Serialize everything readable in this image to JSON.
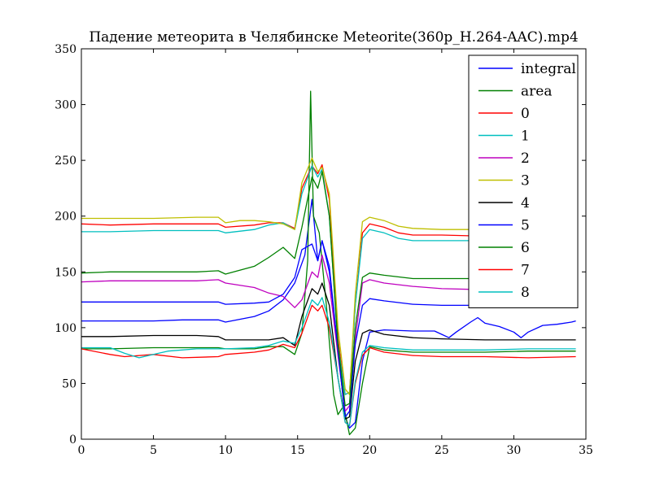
{
  "chart_data": {
    "type": "line",
    "title": "Падение метеорита в Челябинске Meteorite(360p_H.264-AAC).mp4",
    "xlabel": "",
    "ylabel": "",
    "xlim": [
      0,
      35
    ],
    "ylim": [
      0,
      350
    ],
    "xticks": [
      0,
      5,
      10,
      15,
      20,
      25,
      30,
      35
    ],
    "yticks": [
      0,
      50,
      100,
      150,
      200,
      250,
      300,
      350
    ],
    "grid": false,
    "legend_position": "top-right",
    "series": [
      {
        "name": "integral",
        "color": "#0000ff",
        "points": [
          [
            0,
            106
          ],
          [
            2,
            106
          ],
          [
            5,
            106
          ],
          [
            7,
            107
          ],
          [
            9.5,
            107
          ],
          [
            10,
            105
          ],
          [
            12,
            110
          ],
          [
            13,
            115
          ],
          [
            14,
            125
          ],
          [
            14.8,
            140
          ],
          [
            15.5,
            165
          ],
          [
            16,
            215
          ],
          [
            16.4,
            160
          ],
          [
            16.7,
            178
          ],
          [
            17.2,
            150
          ],
          [
            17.8,
            80
          ],
          [
            18.3,
            20
          ],
          [
            18.6,
            10
          ],
          [
            19,
            15
          ],
          [
            19.5,
            70
          ],
          [
            20,
            96
          ],
          [
            21,
            98
          ],
          [
            23,
            97
          ],
          [
            24.5,
            97
          ],
          [
            25,
            94
          ],
          [
            25.5,
            91
          ],
          [
            26,
            96
          ],
          [
            27,
            105
          ],
          [
            27.5,
            109
          ],
          [
            28,
            104
          ],
          [
            29,
            101
          ],
          [
            30,
            96
          ],
          [
            30.5,
            91
          ],
          [
            31,
            96
          ],
          [
            32,
            102
          ],
          [
            33,
            103
          ],
          [
            34,
            105
          ],
          [
            34.3,
            106
          ]
        ]
      },
      {
        "name": "area",
        "color": "#008000",
        "points": [
          [
            0,
            81
          ],
          [
            2,
            81
          ],
          [
            5,
            82
          ],
          [
            8,
            82
          ],
          [
            9.5,
            82
          ],
          [
            10,
            81
          ],
          [
            12,
            81
          ],
          [
            13,
            83
          ],
          [
            14,
            83
          ],
          [
            14.8,
            76
          ],
          [
            15.3,
            95
          ],
          [
            15.7,
            160
          ],
          [
            15.9,
            312
          ],
          [
            16.1,
            200
          ],
          [
            16.5,
            185
          ],
          [
            17,
            120
          ],
          [
            17.5,
            40
          ],
          [
            17.8,
            22
          ],
          [
            18.2,
            30
          ],
          [
            18.6,
            4
          ],
          [
            19,
            10
          ],
          [
            19.5,
            50
          ],
          [
            20,
            83
          ],
          [
            21,
            80
          ],
          [
            23,
            78
          ],
          [
            25,
            78
          ],
          [
            28,
            78
          ],
          [
            31,
            79
          ],
          [
            34.3,
            79
          ]
        ]
      },
      {
        "name": "0",
        "color": "#ff0000",
        "points": [
          [
            0,
            193
          ],
          [
            2,
            192
          ],
          [
            5,
            193
          ],
          [
            8,
            193
          ],
          [
            9.5,
            193
          ],
          [
            10,
            190
          ],
          [
            12,
            192
          ],
          [
            13,
            194
          ],
          [
            14,
            194
          ],
          [
            14.8,
            189
          ],
          [
            15.3,
            225
          ],
          [
            16,
            245
          ],
          [
            16.4,
            238
          ],
          [
            16.7,
            246
          ],
          [
            17.2,
            215
          ],
          [
            17.8,
            90
          ],
          [
            18.3,
            40
          ],
          [
            18.6,
            42
          ],
          [
            19,
            120
          ],
          [
            19.5,
            185
          ],
          [
            20,
            193
          ],
          [
            21,
            190
          ],
          [
            22,
            185
          ],
          [
            23,
            183
          ],
          [
            25,
            183
          ],
          [
            28,
            182
          ],
          [
            31,
            183
          ],
          [
            34.3,
            183
          ]
        ]
      },
      {
        "name": "1",
        "color": "#00bfbf",
        "points": [
          [
            0,
            186
          ],
          [
            2,
            186
          ],
          [
            5,
            187
          ],
          [
            8,
            187
          ],
          [
            9.5,
            187
          ],
          [
            10,
            185
          ],
          [
            12,
            188
          ],
          [
            13,
            192
          ],
          [
            14,
            194
          ],
          [
            14.8,
            188
          ],
          [
            15.3,
            220
          ],
          [
            16,
            245
          ],
          [
            16.4,
            235
          ],
          [
            16.7,
            242
          ],
          [
            17.2,
            200
          ],
          [
            17.8,
            85
          ],
          [
            18.3,
            40
          ],
          [
            18.6,
            42
          ],
          [
            19,
            120
          ],
          [
            19.5,
            180
          ],
          [
            20,
            188
          ],
          [
            21,
            185
          ],
          [
            22,
            180
          ],
          [
            23,
            178
          ],
          [
            25,
            178
          ],
          [
            28,
            178
          ],
          [
            31,
            178
          ],
          [
            34.3,
            177
          ]
        ]
      },
      {
        "name": "2",
        "color": "#bf00bf",
        "points": [
          [
            0,
            141
          ],
          [
            2,
            142
          ],
          [
            5,
            142
          ],
          [
            8,
            142
          ],
          [
            9.5,
            143
          ],
          [
            10,
            140
          ],
          [
            12,
            136
          ],
          [
            13,
            131
          ],
          [
            14,
            128
          ],
          [
            14.8,
            118
          ],
          [
            15.3,
            125
          ],
          [
            16,
            150
          ],
          [
            16.4,
            145
          ],
          [
            16.7,
            165
          ],
          [
            17.2,
            140
          ],
          [
            17.8,
            75
          ],
          [
            18.3,
            25
          ],
          [
            18.6,
            30
          ],
          [
            19,
            90
          ],
          [
            19.5,
            140
          ],
          [
            20,
            143
          ],
          [
            21,
            140
          ],
          [
            23,
            137
          ],
          [
            25,
            135
          ],
          [
            28,
            134
          ],
          [
            31,
            134
          ],
          [
            34.3,
            134
          ]
        ]
      },
      {
        "name": "3",
        "color": "#bfbf00",
        "points": [
          [
            0,
            198
          ],
          [
            2,
            198
          ],
          [
            5,
            198
          ],
          [
            8,
            199
          ],
          [
            9.5,
            199
          ],
          [
            10,
            194
          ],
          [
            11,
            196
          ],
          [
            12,
            196
          ],
          [
            13,
            195
          ],
          [
            14,
            193
          ],
          [
            14.8,
            188
          ],
          [
            15.3,
            230
          ],
          [
            16,
            252
          ],
          [
            16.4,
            240
          ],
          [
            16.7,
            244
          ],
          [
            17.2,
            220
          ],
          [
            17.8,
            100
          ],
          [
            18.3,
            45
          ],
          [
            18.6,
            40
          ],
          [
            19,
            130
          ],
          [
            19.5,
            195
          ],
          [
            20,
            199
          ],
          [
            21,
            196
          ],
          [
            22,
            191
          ],
          [
            23,
            189
          ],
          [
            25,
            188
          ],
          [
            28,
            188
          ],
          [
            31,
            189
          ],
          [
            34.3,
            189
          ]
        ]
      },
      {
        "name": "4",
        "color": "#000000",
        "points": [
          [
            0,
            92
          ],
          [
            2,
            92
          ],
          [
            5,
            93
          ],
          [
            8,
            93
          ],
          [
            9.5,
            92
          ],
          [
            10,
            89
          ],
          [
            12,
            89
          ],
          [
            13,
            89
          ],
          [
            14,
            91
          ],
          [
            14.8,
            84
          ],
          [
            15.3,
            110
          ],
          [
            16,
            135
          ],
          [
            16.4,
            130
          ],
          [
            16.7,
            140
          ],
          [
            17.2,
            120
          ],
          [
            17.8,
            55
          ],
          [
            18.3,
            18
          ],
          [
            18.6,
            20
          ],
          [
            19,
            70
          ],
          [
            19.5,
            95
          ],
          [
            20,
            98
          ],
          [
            21,
            94
          ],
          [
            23,
            91
          ],
          [
            25,
            90
          ],
          [
            28,
            89
          ],
          [
            31,
            89
          ],
          [
            34.3,
            89
          ]
        ]
      },
      {
        "name": "5",
        "color": "#0000ff",
        "points": [
          [
            0,
            123
          ],
          [
            2,
            123
          ],
          [
            5,
            123
          ],
          [
            8,
            123
          ],
          [
            9.5,
            123
          ],
          [
            10,
            121
          ],
          [
            12,
            122
          ],
          [
            13,
            123
          ],
          [
            14,
            130
          ],
          [
            14.8,
            145
          ],
          [
            15.3,
            170
          ],
          [
            16,
            175
          ],
          [
            16.4,
            160
          ],
          [
            16.7,
            178
          ],
          [
            17.2,
            155
          ],
          [
            17.8,
            80
          ],
          [
            18.3,
            20
          ],
          [
            18.6,
            25
          ],
          [
            19,
            85
          ],
          [
            19.5,
            120
          ],
          [
            20,
            126
          ],
          [
            21,
            124
          ],
          [
            23,
            121
          ],
          [
            25,
            120
          ],
          [
            28,
            120
          ],
          [
            31,
            120
          ],
          [
            34.3,
            120
          ]
        ]
      },
      {
        "name": "6",
        "color": "#008000",
        "points": [
          [
            0,
            149
          ],
          [
            2,
            150
          ],
          [
            5,
            150
          ],
          [
            8,
            150
          ],
          [
            9.5,
            151
          ],
          [
            10,
            148
          ],
          [
            12,
            155
          ],
          [
            13,
            163
          ],
          [
            14,
            172
          ],
          [
            14.8,
            162
          ],
          [
            15.3,
            190
          ],
          [
            16,
            235
          ],
          [
            16.4,
            225
          ],
          [
            16.7,
            240
          ],
          [
            17.2,
            200
          ],
          [
            17.8,
            85
          ],
          [
            18.3,
            30
          ],
          [
            18.6,
            32
          ],
          [
            19,
            100
          ],
          [
            19.5,
            145
          ],
          [
            20,
            149
          ],
          [
            21,
            147
          ],
          [
            23,
            144
          ],
          [
            25,
            144
          ],
          [
            28,
            144
          ],
          [
            31,
            144
          ],
          [
            34.3,
            144
          ]
        ]
      },
      {
        "name": "7",
        "color": "#ff0000",
        "points": [
          [
            0,
            81
          ],
          [
            2,
            76
          ],
          [
            3,
            74
          ],
          [
            5,
            76
          ],
          [
            7,
            73
          ],
          [
            9.5,
            74
          ],
          [
            10,
            76
          ],
          [
            12,
            78
          ],
          [
            13,
            80
          ],
          [
            14,
            85
          ],
          [
            14.8,
            82
          ],
          [
            15.3,
            95
          ],
          [
            16,
            120
          ],
          [
            16.4,
            115
          ],
          [
            16.7,
            120
          ],
          [
            17.2,
            100
          ],
          [
            17.8,
            55
          ],
          [
            18.3,
            15
          ],
          [
            18.6,
            12
          ],
          [
            19,
            50
          ],
          [
            19.5,
            75
          ],
          [
            20,
            82
          ],
          [
            21,
            78
          ],
          [
            23,
            75
          ],
          [
            25,
            74
          ],
          [
            28,
            74
          ],
          [
            31,
            73
          ],
          [
            34.3,
            74
          ]
        ]
      },
      {
        "name": "8",
        "color": "#00bfbf",
        "points": [
          [
            0,
            82
          ],
          [
            2,
            82
          ],
          [
            3,
            77
          ],
          [
            4,
            73
          ],
          [
            5,
            76
          ],
          [
            6,
            79
          ],
          [
            8,
            81
          ],
          [
            9.5,
            81
          ],
          [
            10,
            81
          ],
          [
            12,
            82
          ],
          [
            13,
            84
          ],
          [
            14,
            88
          ],
          [
            14.8,
            86
          ],
          [
            15.3,
            100
          ],
          [
            16,
            125
          ],
          [
            16.4,
            120
          ],
          [
            16.7,
            127
          ],
          [
            17.2,
            105
          ],
          [
            17.8,
            55
          ],
          [
            18.3,
            15
          ],
          [
            18.6,
            12
          ],
          [
            19,
            52
          ],
          [
            19.5,
            78
          ],
          [
            20,
            84
          ],
          [
            21,
            82
          ],
          [
            23,
            80
          ],
          [
            25,
            80
          ],
          [
            28,
            80
          ],
          [
            31,
            81
          ],
          [
            34.3,
            81
          ]
        ]
      }
    ]
  }
}
